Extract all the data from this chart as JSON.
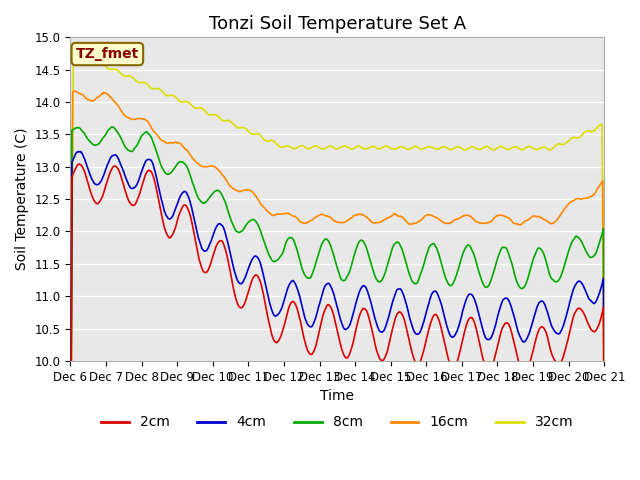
{
  "title": "Tonzi Soil Temperature Set A",
  "xlabel": "Time",
  "ylabel": "Soil Temperature (C)",
  "ylim": [
    10.0,
    15.0
  ],
  "yticks": [
    10.0,
    10.5,
    11.0,
    11.5,
    12.0,
    12.5,
    13.0,
    13.5,
    14.0,
    14.5,
    15.0
  ],
  "colors": {
    "2cm": "#dd0000",
    "4cm": "#0000cc",
    "8cm": "#00aa00",
    "16cm": "#ff8800",
    "32cm": "#dddd00"
  },
  "annotation_text": "TZ_fmet",
  "annotation_bg": "#ffffcc",
  "annotation_border": "#886600",
  "annotation_text_color": "#880000",
  "bg_color": "#e8e8e8",
  "grid_color": "#ffffff",
  "fig_bg": "#ffffff",
  "xtick_labels": [
    "Dec 6",
    "Dec 7",
    "Dec 8",
    "Dec 9",
    "Dec 10",
    "Dec 11",
    "Dec 12",
    "Dec 13",
    "Dec 14",
    "Dec 15",
    "Dec 16",
    "Dec 17",
    "Dec 18",
    "Dec 19",
    "Dec 20",
    "Dec 21"
  ],
  "n_days": 15,
  "points_per_day": 48,
  "title_fontsize": 13,
  "axis_label_fontsize": 10,
  "tick_fontsize": 8.5,
  "legend_fontsize": 10
}
